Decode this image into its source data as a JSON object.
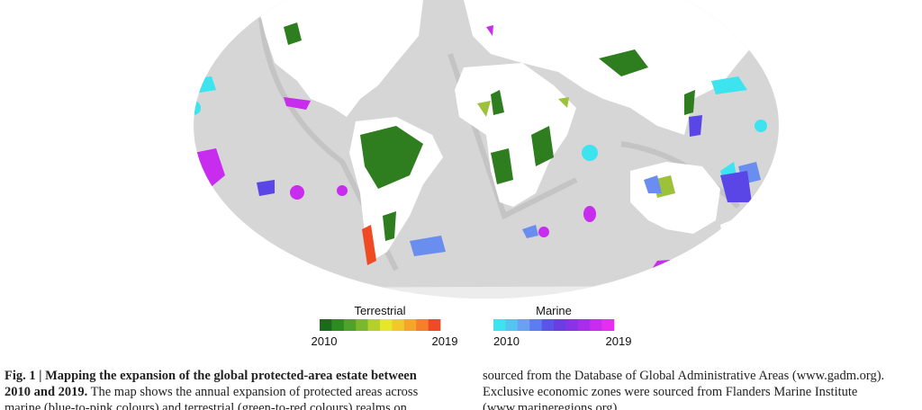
{
  "legends": [
    {
      "title": "Terrestrial",
      "start": "2010",
      "end": "2019",
      "colors": [
        "#1a6b1a",
        "#2e8b22",
        "#4fa22a",
        "#7ab82e",
        "#b5cf2c",
        "#e6e62a",
        "#f2c72a",
        "#f5a52a",
        "#f57f2a",
        "#ef4a23"
      ]
    },
    {
      "title": "Marine",
      "start": "2010",
      "end": "2019",
      "colors": [
        "#3ee3f0",
        "#55c4f2",
        "#6aa2f3",
        "#5c7df0",
        "#5a55e8",
        "#6a3ee0",
        "#8a33e6",
        "#a92eea",
        "#c82cee",
        "#e52ef0"
      ]
    }
  ],
  "caption": {
    "left": [
      [
        {
          "text": "Fig. 1 | Mapping the expansion of the global protected-area estate between",
          "bold": true
        }
      ],
      [
        {
          "text": "2010 and 2019.",
          "bold": true
        },
        {
          "text": " The map shows the annual expansion of protected areas across",
          "bold": false
        }
      ],
      [
        {
          "text": "marine (blue-to-pink colours) and terrestrial (green-to-red colours) realms on",
          "bold": false
        }
      ]
    ],
    "right": [
      [
        {
          "text": "sourced from the Database of Global Administrative Areas (www.gadm.org).",
          "bold": false
        }
      ],
      [
        {
          "text": "Exclusive economic zones were sourced from Flanders Marine Institute",
          "bold": false
        }
      ],
      [
        {
          "text": "(www.marineregions.org).",
          "bold": false
        }
      ]
    ]
  }
}
